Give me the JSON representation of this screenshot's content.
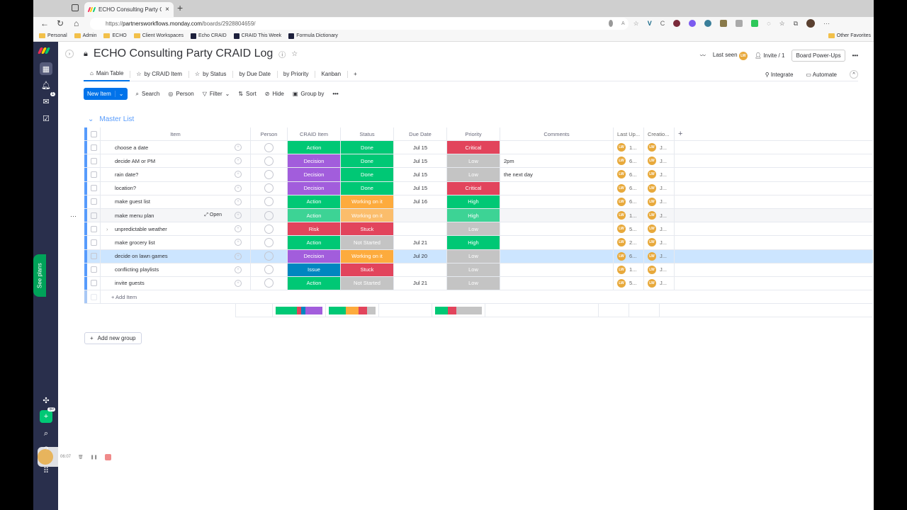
{
  "browser": {
    "tab_title": "ECHO Consulting Party CRAID",
    "url_prefix": "https://",
    "url_domain": "partnersworkflows.monday.com",
    "url_path": "/boards/2928804659/",
    "bookmarks": [
      {
        "label": "Personal",
        "icon": "folder-icon"
      },
      {
        "label": "Admin",
        "icon": "folder-icon"
      },
      {
        "label": "ECHO",
        "icon": "folder-icon"
      },
      {
        "label": "Client Workspaces",
        "icon": "folder-icon"
      },
      {
        "label": "Echo CRAID",
        "icon": "monday-icon"
      },
      {
        "label": "CRAID This Week",
        "icon": "monday-icon"
      },
      {
        "label": "Formula Dictionary",
        "icon": "monday-icon"
      }
    ],
    "other_favorites": "Other Favorites"
  },
  "leftnav": {
    "inbox_badge": "1",
    "invite_badge": "$0",
    "see_plans": "See plans"
  },
  "board": {
    "title": "ECHO Consulting Party CRAID Log",
    "last_seen": "Last seen",
    "invite": "Invite / 1",
    "power_ups": "Board Power-Ups",
    "avatar_initials": "LW"
  },
  "views": {
    "tabs": [
      {
        "label": "Main Table",
        "icon": "home-icon",
        "active": true
      },
      {
        "label": "by CRAID Item",
        "icon": "star-icon"
      },
      {
        "label": "by Status",
        "icon": "star-icon"
      },
      {
        "label": "by Due Date"
      },
      {
        "label": "by Priority"
      },
      {
        "label": "Kanban"
      },
      {
        "label": "+"
      }
    ],
    "integrate": "Integrate",
    "automate": "Automate"
  },
  "toolbar": {
    "new_item": "New Item",
    "search": "Search",
    "person": "Person",
    "filter": "Filter",
    "sort": "Sort",
    "hide": "Hide",
    "group_by": "Group by"
  },
  "group": {
    "title": "Master List",
    "add_item": "+ Add Item",
    "add_new_group": "Add new group"
  },
  "columns": {
    "item": "Item",
    "person": "Person",
    "craid": "CRAID Item",
    "status": "Status",
    "due": "Due Date",
    "priority": "Priority",
    "comments": "Comments",
    "last_updated": "Last Up...",
    "creation": "Creatio...",
    "add": "+"
  },
  "colors": {
    "Action": "#00c875",
    "Decision": "#a25ddc",
    "Risk": "#e2445c",
    "Issue": "#0086c0",
    "Done": "#00c875",
    "Working on it": "#fdab3d",
    "Stuck": "#e2445c",
    "Not Started": "#c4c4c4",
    "Critical": "#e2445c",
    "High": "#00c875",
    "Low": "#c4c4c4"
  },
  "rows": [
    {
      "item": "choose a date",
      "craid": "Action",
      "status": "Done",
      "due": "Jul 15",
      "priority": "Critical",
      "comments": "",
      "last": "1...",
      "creation": "J..."
    },
    {
      "item": "decide AM or PM",
      "craid": "Decision",
      "status": "Done",
      "due": "Jul 15",
      "priority": "Low",
      "comments": "2pm",
      "last": "6...",
      "creation": "J..."
    },
    {
      "item": "rain date?",
      "craid": "Decision",
      "status": "Done",
      "due": "Jul 15",
      "priority": "Low",
      "comments": "the next day",
      "last": "6...",
      "creation": "J..."
    },
    {
      "item": "location?",
      "craid": "Decision",
      "status": "Done",
      "due": "Jul 15",
      "priority": "Critical",
      "comments": "",
      "last": "6...",
      "creation": "J..."
    },
    {
      "item": "make guest list",
      "craid": "Action",
      "status": "Working on it",
      "due": "Jul 16",
      "priority": "High",
      "comments": "",
      "last": "6...",
      "creation": "J..."
    },
    {
      "item": "make menu plan",
      "craid": "Action",
      "status": "Working on it",
      "due": "",
      "priority": "High",
      "comments": "",
      "last": "1...",
      "creation": "J...",
      "hover": true,
      "open_label": "Open"
    },
    {
      "item": "unpredictable weather",
      "craid": "Risk",
      "status": "Stuck",
      "due": "",
      "priority": "Low",
      "comments": "",
      "last": "5...",
      "creation": "J...",
      "has_subitems": true
    },
    {
      "item": "make grocery list",
      "craid": "Action",
      "status": "Not Started",
      "due": "Jul 21",
      "priority": "High",
      "comments": "",
      "last": "2...",
      "creation": "J..."
    },
    {
      "item": "decide on lawn games",
      "craid": "Decision",
      "status": "Working on it",
      "due": "Jul 20",
      "priority": "Low",
      "comments": "",
      "last": "6...",
      "creation": "J...",
      "selected": true
    },
    {
      "item": "conflicting playlists",
      "craid": "Issue",
      "status": "Stuck",
      "due": "",
      "priority": "Low",
      "comments": "",
      "last": "1...",
      "creation": "J..."
    },
    {
      "item": "invite guests",
      "craid": "Action",
      "status": "Not Started",
      "due": "Jul 21",
      "priority": "Low",
      "comments": "",
      "last": "5...",
      "creation": "J..."
    }
  ],
  "summary": {
    "craid": [
      {
        "label": "Action",
        "count": 5
      },
      {
        "label": "Risk",
        "count": 1
      },
      {
        "label": "Issue",
        "count": 1
      },
      {
        "label": "Decision",
        "count": 4
      }
    ],
    "status": [
      {
        "label": "Done",
        "count": 4
      },
      {
        "label": "Working on it",
        "count": 3
      },
      {
        "label": "Stuck",
        "count": 2
      },
      {
        "label": "Not Started",
        "count": 2
      }
    ],
    "priority": [
      {
        "label": "High",
        "count": 3
      },
      {
        "label": "Critical",
        "count": 2
      },
      {
        "label": "Low",
        "count": 6
      }
    ]
  },
  "recorder": {
    "time": "06:07"
  }
}
